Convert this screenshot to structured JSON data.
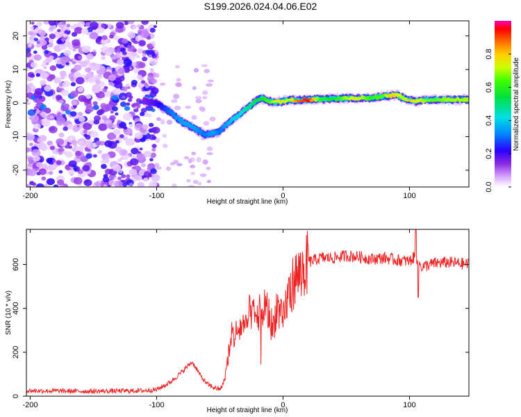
{
  "title": "S199.2026.024.04.06.E02",
  "chart_data": [
    {
      "type": "heatmap",
      "name": "spectrogram",
      "xlabel": "Height of straight line (km)",
      "ylabel": "Frequency (Hz)",
      "xlim": [
        -203,
        147
      ],
      "ylim": [
        -25,
        24.5
      ],
      "xticks": [
        -200,
        -100,
        0,
        100
      ],
      "yticks": [
        20,
        10,
        0,
        -10,
        -20
      ],
      "colorbar": {
        "label": "Normalized spectral amplitude",
        "range": [
          0,
          1
        ],
        "ticks": [
          0.0,
          0.2,
          0.4,
          0.6,
          0.8
        ]
      },
      "noise_region": {
        "x_range": [
          -203,
          -100
        ],
        "y_range": [
          -25,
          24.5
        ]
      },
      "signal_ridge": {
        "x": [
          -110,
          -100,
          -90,
          -80,
          -70,
          -62,
          -55,
          -50,
          -45,
          -40,
          -35,
          -30,
          -25,
          -20,
          -17,
          -14,
          -10,
          -5,
          0,
          5,
          10,
          20,
          30,
          40,
          50,
          60,
          70,
          80,
          85,
          90,
          95,
          100,
          105,
          110,
          120,
          130,
          147
        ],
        "frequency": [
          0.5,
          0.0,
          -2.5,
          -5.5,
          -7.5,
          -9.5,
          -9.0,
          -8.5,
          -6.5,
          -5.0,
          -3.5,
          -2.0,
          -0.5,
          1.0,
          1.5,
          1.0,
          0.5,
          0.3,
          0.5,
          1.0,
          0.8,
          1.0,
          1.2,
          1.3,
          1.5,
          1.5,
          1.5,
          2.0,
          2.2,
          2.5,
          1.5,
          0.8,
          0.6,
          0.8,
          1.0,
          1.0,
          1.0
        ],
        "amplitude": [
          0.15,
          0.2,
          0.3,
          0.35,
          0.35,
          0.3,
          0.35,
          0.3,
          0.35,
          0.4,
          0.4,
          0.45,
          0.5,
          0.55,
          0.55,
          0.6,
          0.65,
          0.75,
          0.75,
          0.7,
          0.85,
          0.95,
          0.6,
          0.55,
          0.7,
          0.75,
          0.6,
          0.65,
          0.8,
          0.75,
          0.7,
          0.8,
          0.75,
          0.7,
          0.65,
          0.7,
          0.7
        ]
      }
    },
    {
      "type": "line",
      "name": "snr",
      "xlabel": "Height of straight line (km)",
      "ylabel": "SNR (10 * v/v)",
      "xlim": [
        -203,
        147
      ],
      "ylim": [
        0,
        760
      ],
      "xticks": [
        -200,
        -100,
        0,
        100
      ],
      "yticks": [
        0,
        200,
        400,
        600
      ],
      "color": "#ee2222",
      "series": [
        {
          "name": "SNR",
          "x": [
            -203,
            -150,
            -110,
            -100,
            -95,
            -90,
            -85,
            -80,
            -75,
            -72,
            -70,
            -65,
            -60,
            -55,
            -50,
            -47,
            -45,
            -43,
            -40,
            -38,
            -35,
            -32,
            -30,
            -27,
            -25,
            -22,
            -20,
            -17,
            -15,
            -12,
            -10,
            -8,
            -5,
            -3,
            0,
            3,
            5,
            8,
            10,
            15,
            20,
            25,
            30,
            40,
            50,
            60,
            70,
            80,
            90,
            100,
            105,
            108,
            110,
            120,
            130,
            147
          ],
          "y": [
            25,
            22,
            25,
            30,
            45,
            60,
            85,
            110,
            140,
            155,
            140,
            90,
            55,
            40,
            30,
            60,
            120,
            200,
            270,
            280,
            300,
            330,
            290,
            360,
            400,
            340,
            380,
            330,
            420,
            380,
            350,
            300,
            420,
            380,
            330,
            440,
            470,
            520,
            540,
            570,
            610,
            620,
            630,
            630,
            640,
            635,
            625,
            630,
            620,
            615,
            640,
            600,
            590,
            605,
            610,
            600
          ]
        }
      ]
    }
  ]
}
